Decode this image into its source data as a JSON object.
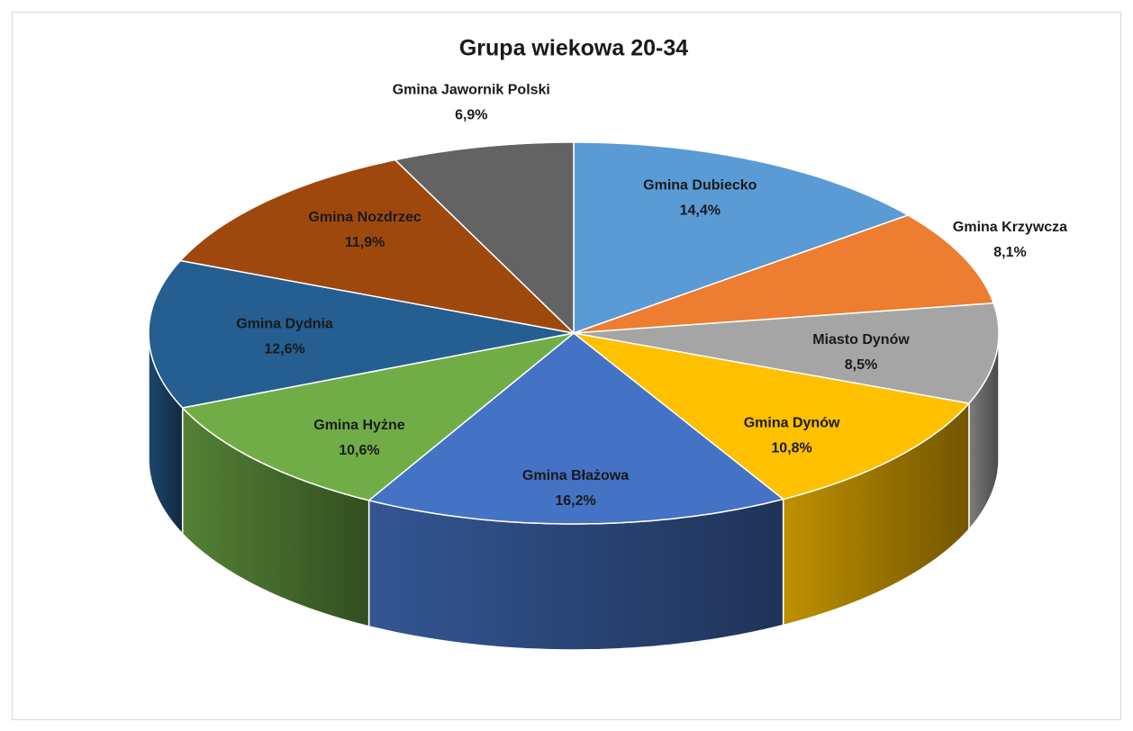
{
  "chart_data": {
    "type": "pie3d",
    "title": "Grupa wiekowa 20-34",
    "categories": [
      "Gmina Dubiecko",
      "Gmina Krzywcza",
      "Miasto Dynów",
      "Gmina Dynów",
      "Gmina Błażowa",
      "Gmina Hyżne",
      "Gmina Dydnia",
      "Gmina Nozdrzec",
      "Gmina Jawornik Polski"
    ],
    "values": [
      14.4,
      8.1,
      8.5,
      10.8,
      16.2,
      10.6,
      12.6,
      11.9,
      6.9
    ],
    "value_labels": [
      "14,4%",
      "8,1%",
      "8,5%",
      "10,8%",
      "16,2%",
      "10,6%",
      "12,6%",
      "11,9%",
      "6,9%"
    ],
    "colors": [
      "#5b9bd5",
      "#ed7d31",
      "#a5a5a5",
      "#ffc000",
      "#4472c4",
      "#70ad47",
      "#255e91",
      "#9e480e",
      "#636363"
    ]
  }
}
